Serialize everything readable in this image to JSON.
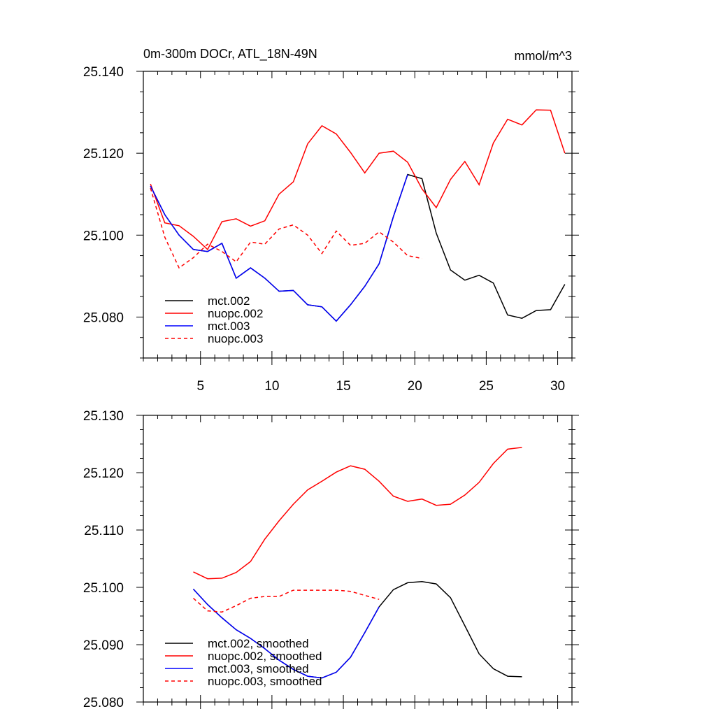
{
  "chart_data": [
    {
      "type": "line",
      "title": "0m-300m DOCr, ATL_18N-49N",
      "units": "mmol/m^3",
      "xlim": [
        1,
        31
      ],
      "ylim": [
        25.07,
        25.14
      ],
      "xticks": [
        5,
        10,
        15,
        20,
        25,
        30
      ],
      "yticks": [
        25.08,
        25.1,
        25.12,
        25.14
      ],
      "ytick_labels": [
        "25.080",
        "25.100",
        "25.120",
        "25.140"
      ],
      "legend_position": "bottom-left",
      "series": [
        {
          "name": "mct.002",
          "color": "#000000",
          "style": "solid",
          "x": [
            1.5,
            2.5,
            3.5,
            4.5,
            5.5,
            6.5,
            7.5,
            8.5,
            9.5,
            10.5,
            11.5,
            12.5,
            13.5,
            14.5,
            15.5,
            16.5,
            17.5,
            18.5,
            19.5,
            20.5,
            21.5,
            22.5,
            23.5,
            24.5,
            25.5,
            26.5,
            27.5,
            28.5,
            29.5,
            30.5
          ],
          "y": [
            25.112,
            25.105,
            25.1,
            25.0965,
            25.096,
            25.098,
            25.0895,
            25.092,
            25.0895,
            25.0863,
            25.0865,
            25.083,
            25.0825,
            25.079,
            25.083,
            25.0875,
            25.093,
            25.1045,
            25.1148,
            25.1138,
            25.1005,
            25.0915,
            25.089,
            25.0902,
            25.0883,
            25.0805,
            25.0797,
            25.0816,
            25.0818,
            25.088
          ]
        },
        {
          "name": "nuopc.002",
          "color": "#ff0000",
          "style": "solid",
          "x": [
            1.5,
            2.5,
            3.5,
            4.5,
            5.5,
            6.5,
            7.5,
            8.5,
            9.5,
            10.5,
            11.5,
            12.5,
            13.5,
            14.5,
            15.5,
            16.5,
            17.5,
            18.5,
            19.5,
            20.5,
            21.5,
            22.5,
            23.5,
            24.5,
            25.5,
            26.5,
            27.5,
            28.5,
            29.5,
            30.5
          ],
          "y": [
            25.1125,
            25.103,
            25.1023,
            25.0997,
            25.0965,
            25.1033,
            25.104,
            25.1022,
            25.1035,
            25.11,
            25.113,
            25.1223,
            25.1267,
            25.1247,
            25.1202,
            25.1152,
            25.12,
            25.1205,
            25.1178,
            25.1113,
            25.1067,
            25.1136,
            25.118,
            25.1123,
            25.1225,
            25.1283,
            25.1269,
            25.1306,
            25.1305,
            25.12
          ]
        },
        {
          "name": "mct.003",
          "color": "#0000ff",
          "style": "solid",
          "x": [
            1.5,
            2.5,
            3.5,
            4.5,
            5.5,
            6.5,
            7.5,
            8.5,
            9.5,
            10.5,
            11.5,
            12.5,
            13.5,
            14.5,
            15.5,
            16.5,
            17.5,
            18.5,
            19.5
          ],
          "y": [
            25.112,
            25.105,
            25.1,
            25.0965,
            25.096,
            25.098,
            25.0895,
            25.092,
            25.0895,
            25.0863,
            25.0865,
            25.083,
            25.0825,
            25.079,
            25.083,
            25.0875,
            25.093,
            25.1045,
            25.1148
          ]
        },
        {
          "name": "nuopc.003",
          "color": "#ff0000",
          "style": "dashed",
          "x": [
            1.5,
            2.5,
            3.5,
            4.5,
            5.5,
            6.5,
            7.5,
            8.5,
            9.5,
            10.5,
            11.5,
            12.5,
            13.5,
            14.5,
            15.5,
            16.5,
            17.5,
            18.5,
            19.5,
            20.5
          ],
          "y": [
            25.1115,
            25.0995,
            25.092,
            25.0945,
            25.0978,
            25.096,
            25.0935,
            25.0983,
            25.0978,
            25.1015,
            25.1025,
            25.1,
            25.0955,
            25.101,
            25.0975,
            25.098,
            25.1008,
            25.0983,
            25.095,
            25.0943
          ]
        }
      ]
    },
    {
      "type": "line",
      "xlim": [
        1,
        31
      ],
      "ylim": [
        25.08,
        25.13
      ],
      "xticks": [
        5,
        10,
        15,
        20,
        25,
        30
      ],
      "yticks": [
        25.08,
        25.09,
        25.1,
        25.11,
        25.12,
        25.13
      ],
      "ytick_labels": [
        "25.080",
        "25.090",
        "25.100",
        "25.110",
        "25.120",
        "25.130"
      ],
      "legend_position": "bottom-left",
      "series": [
        {
          "name": "mct.002, smoothed",
          "color": "#000000",
          "style": "solid",
          "x": [
            4.5,
            5.5,
            6.5,
            7.5,
            8.5,
            9.5,
            10.5,
            11.5,
            12.5,
            13.5,
            14.5,
            15.5,
            16.5,
            17.5,
            18.5,
            19.5,
            20.5,
            21.5,
            22.5,
            23.5,
            24.5,
            25.5,
            26.5,
            27.5
          ],
          "y": [
            25.0997,
            25.097,
            25.0947,
            25.0926,
            25.0911,
            25.0893,
            25.0873,
            25.0857,
            25.0845,
            25.0842,
            25.0852,
            25.0878,
            25.0921,
            25.0966,
            25.0996,
            25.1008,
            25.101,
            25.1006,
            25.0982,
            25.0933,
            25.0884,
            25.0858,
            25.0845,
            25.0844
          ]
        },
        {
          "name": "nuopc.002, smoothed",
          "color": "#ff0000",
          "style": "solid",
          "x": [
            4.5,
            5.5,
            6.5,
            7.5,
            8.5,
            9.5,
            10.5,
            11.5,
            12.5,
            13.5,
            14.5,
            15.5,
            16.5,
            17.5,
            18.5,
            19.5,
            20.5,
            21.5,
            22.5,
            23.5,
            24.5,
            25.5,
            26.5,
            27.5
          ],
          "y": [
            25.1027,
            25.1015,
            25.1016,
            25.1026,
            25.1045,
            25.1084,
            25.1116,
            25.1145,
            25.117,
            25.1185,
            25.1201,
            25.1212,
            25.1206,
            25.1185,
            25.1159,
            25.115,
            25.1154,
            25.1143,
            25.1145,
            25.1161,
            25.1183,
            25.1216,
            25.1241,
            25.1244
          ]
        },
        {
          "name": "mct.003, smoothed",
          "color": "#0000ff",
          "style": "solid",
          "x": [
            4.5,
            5.5,
            6.5,
            7.5,
            8.5,
            9.5,
            10.5,
            11.5,
            12.5,
            13.5,
            14.5,
            15.5,
            16.5,
            17.5
          ],
          "y": [
            25.0997,
            25.097,
            25.0947,
            25.0926,
            25.0911,
            25.0893,
            25.0873,
            25.0857,
            25.0845,
            25.0842,
            25.0852,
            25.0878,
            25.0921,
            25.0966
          ]
        },
        {
          "name": "nuopc.003, smoothed",
          "color": "#ff0000",
          "style": "dashed",
          "x": [
            4.5,
            5.5,
            6.5,
            7.5,
            8.5,
            9.5,
            10.5,
            11.5,
            12.5,
            13.5,
            14.5,
            15.5,
            16.5,
            17.5
          ],
          "y": [
            25.0981,
            25.0959,
            25.0957,
            25.0968,
            25.0981,
            25.0984,
            25.0984,
            25.0995,
            25.0995,
            25.0995,
            25.0995,
            25.0993,
            25.0986,
            25.0979
          ]
        }
      ]
    }
  ]
}
